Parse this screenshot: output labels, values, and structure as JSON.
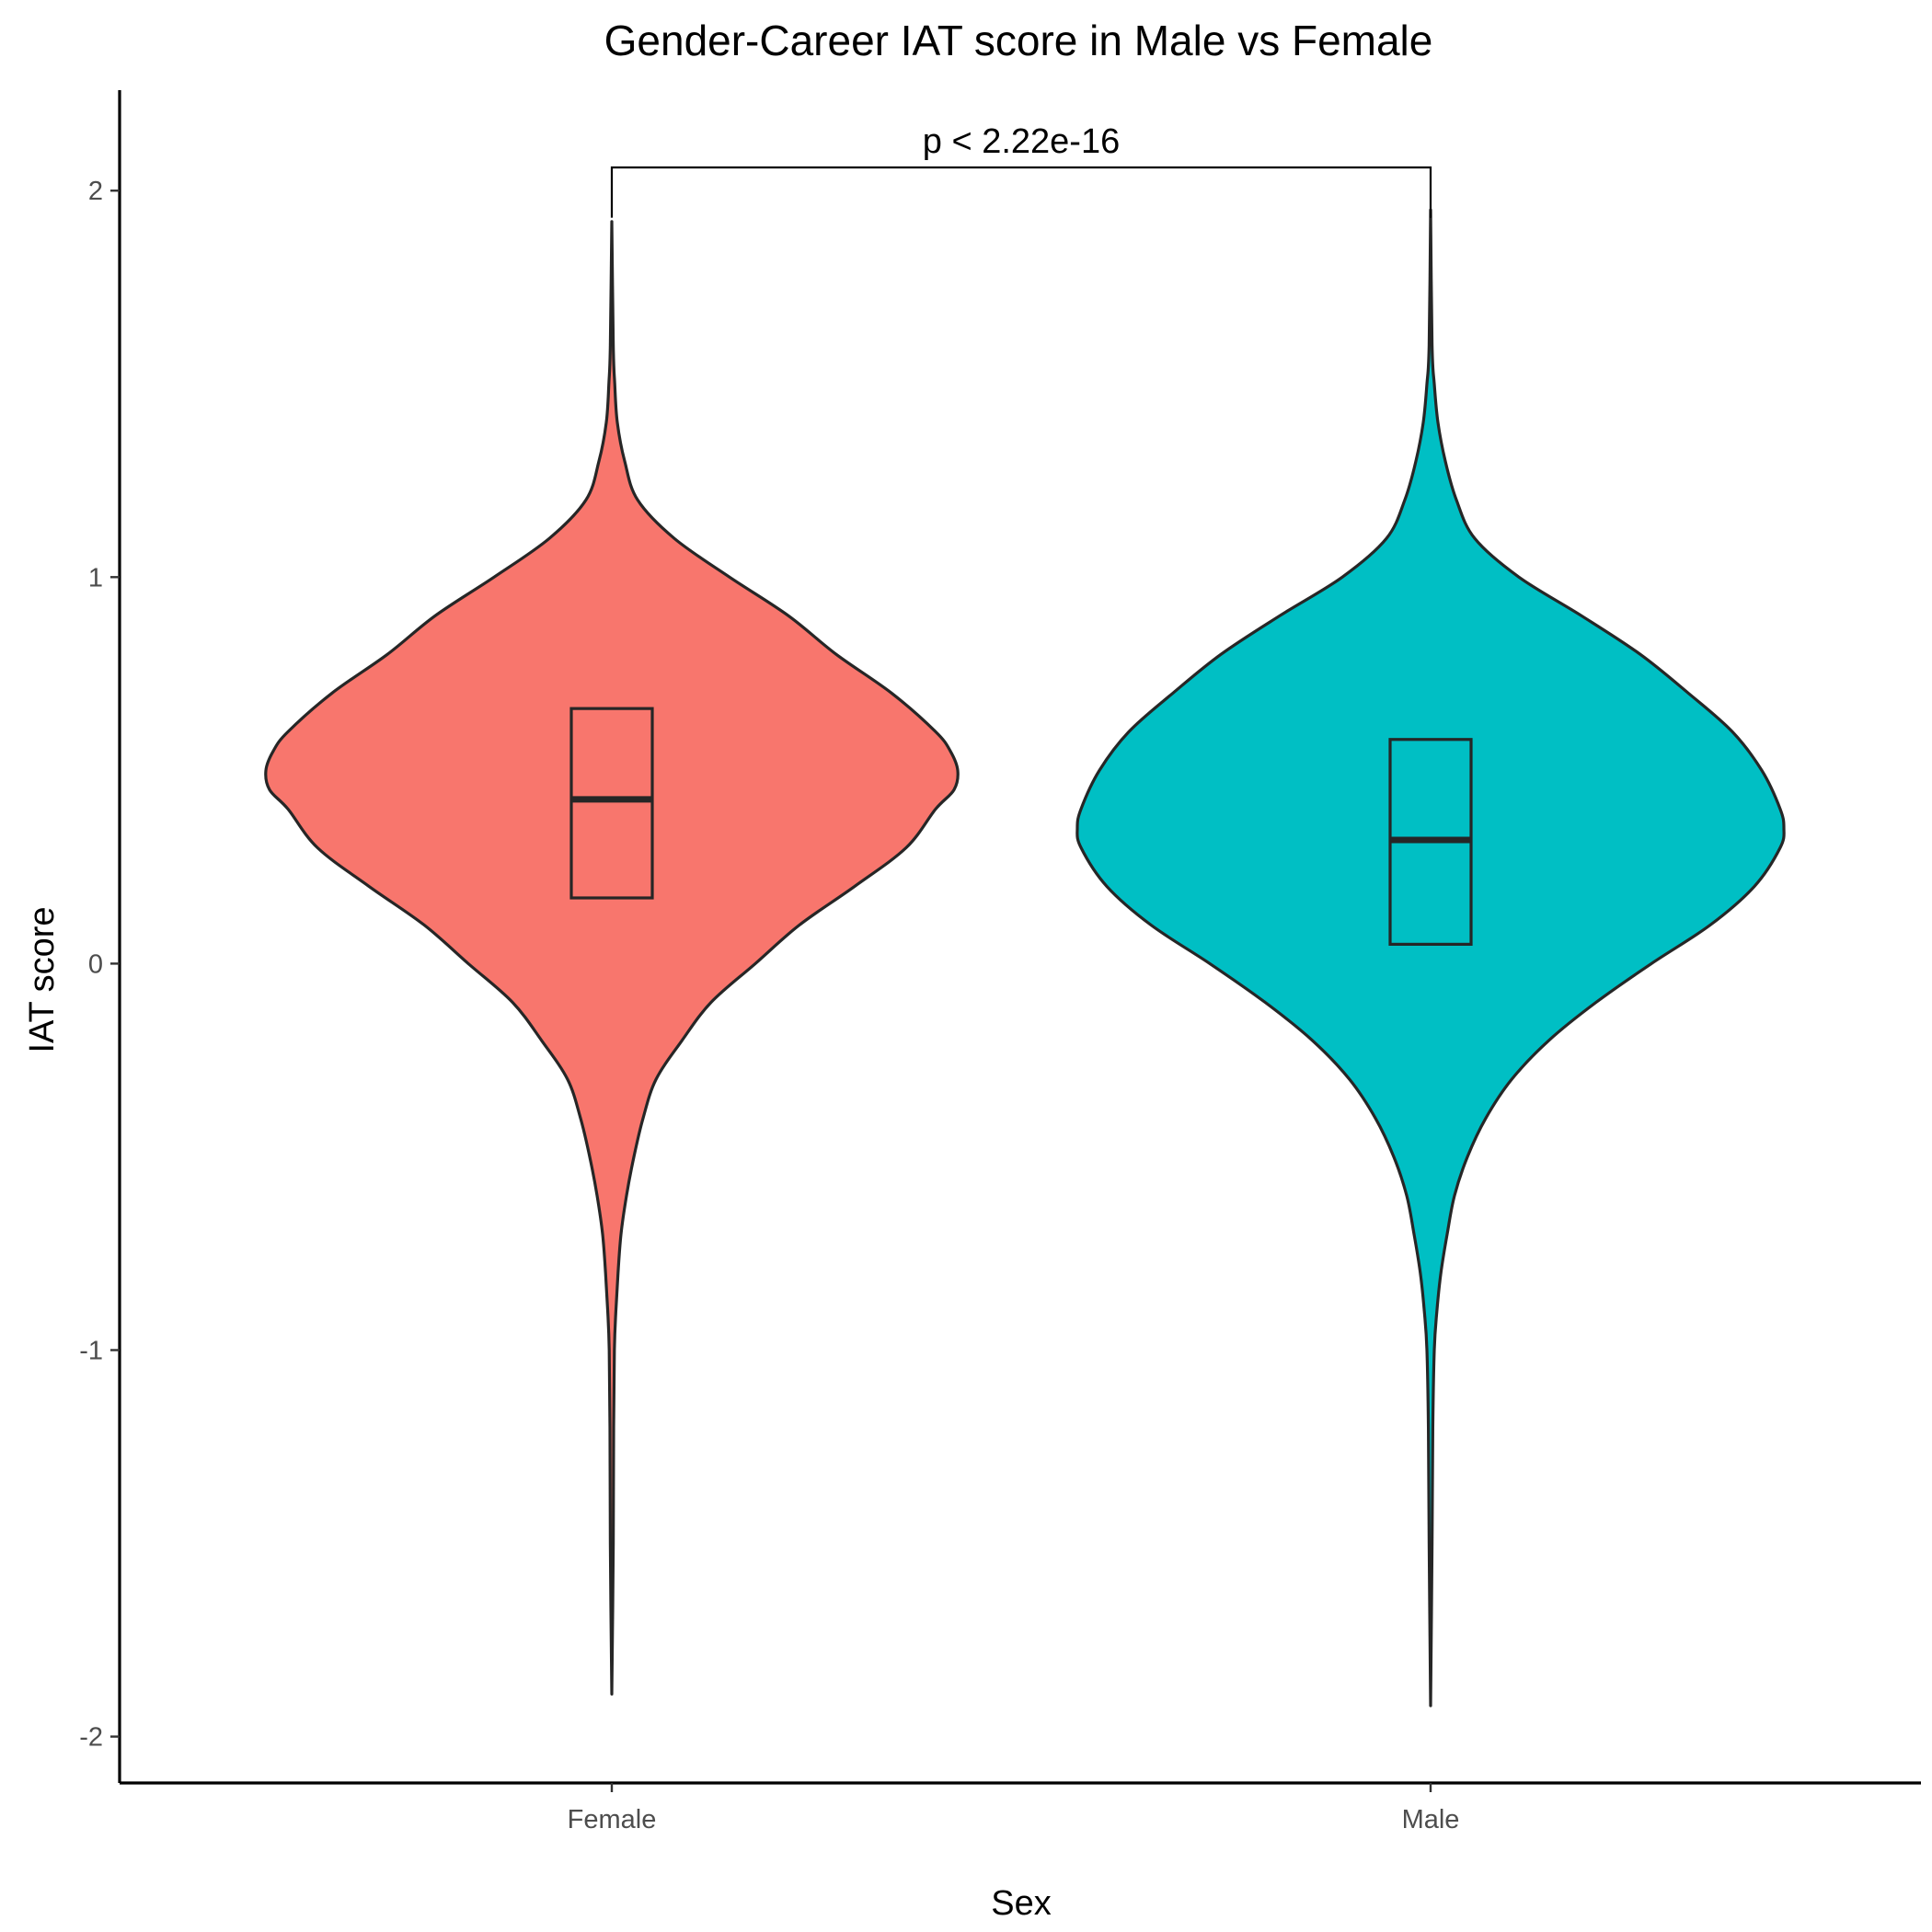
{
  "chart_data": {
    "type": "violin",
    "title": "Gender-Career IAT score in Male vs Female",
    "xlabel": "Sex",
    "ylabel": "IAT score",
    "categories": [
      "Female",
      "Male"
    ],
    "ylim": [
      -2.12,
      2.26
    ],
    "yticks": [
      -2,
      -1,
      0,
      1,
      2
    ],
    "grid": false,
    "legend": "none",
    "colors": {
      "Female": "#F8766D",
      "Male": "#00BFC4"
    },
    "series": [
      {
        "category": "Female",
        "min": -1.89,
        "max": 1.92,
        "box": {
          "q1": 0.17,
          "median": 0.425,
          "q3": 0.66
        },
        "density_profile": [
          [
            1.92,
            0.0
          ],
          [
            1.6,
            0.004
          ],
          [
            1.5,
            0.008
          ],
          [
            1.4,
            0.015
          ],
          [
            1.3,
            0.035
          ],
          [
            1.2,
            0.07
          ],
          [
            1.1,
            0.17
          ],
          [
            1.0,
            0.32
          ],
          [
            0.9,
            0.48
          ],
          [
            0.8,
            0.61
          ],
          [
            0.7,
            0.76
          ],
          [
            0.6,
            0.88
          ],
          [
            0.55,
            0.92
          ],
          [
            0.5,
            0.94
          ],
          [
            0.45,
            0.93
          ],
          [
            0.4,
            0.88
          ],
          [
            0.3,
            0.8
          ],
          [
            0.2,
            0.66
          ],
          [
            0.1,
            0.51
          ],
          [
            0.0,
            0.39
          ],
          [
            -0.1,
            0.27
          ],
          [
            -0.2,
            0.19
          ],
          [
            -0.3,
            0.12
          ],
          [
            -0.4,
            0.085
          ],
          [
            -0.5,
            0.06
          ],
          [
            -0.6,
            0.04
          ],
          [
            -0.7,
            0.025
          ],
          [
            -0.8,
            0.017
          ],
          [
            -0.9,
            0.011
          ],
          [
            -1.0,
            0.007
          ],
          [
            -1.2,
            0.005
          ],
          [
            -1.5,
            0.004
          ],
          [
            -1.89,
            0.0
          ]
        ]
      },
      {
        "category": "Male",
        "min": -1.92,
        "max": 1.95,
        "box": {
          "q1": 0.05,
          "median": 0.32,
          "q3": 0.58
        },
        "density_profile": [
          [
            1.95,
            0.0
          ],
          [
            1.6,
            0.004
          ],
          [
            1.5,
            0.01
          ],
          [
            1.4,
            0.02
          ],
          [
            1.3,
            0.04
          ],
          [
            1.2,
            0.07
          ],
          [
            1.1,
            0.12
          ],
          [
            1.0,
            0.24
          ],
          [
            0.9,
            0.41
          ],
          [
            0.8,
            0.57
          ],
          [
            0.7,
            0.7
          ],
          [
            0.6,
            0.82
          ],
          [
            0.5,
            0.9
          ],
          [
            0.4,
            0.95
          ],
          [
            0.35,
            0.96
          ],
          [
            0.3,
            0.95
          ],
          [
            0.2,
            0.88
          ],
          [
            0.1,
            0.76
          ],
          [
            0.0,
            0.6
          ],
          [
            -0.1,
            0.45
          ],
          [
            -0.2,
            0.32
          ],
          [
            -0.3,
            0.22
          ],
          [
            -0.4,
            0.15
          ],
          [
            -0.5,
            0.1
          ],
          [
            -0.6,
            0.065
          ],
          [
            -0.7,
            0.045
          ],
          [
            -0.8,
            0.028
          ],
          [
            -0.9,
            0.017
          ],
          [
            -1.0,
            0.01
          ],
          [
            -1.2,
            0.006
          ],
          [
            -1.5,
            0.004
          ],
          [
            -1.92,
            0.0
          ]
        ]
      }
    ],
    "annotations": [
      {
        "type": "comparison-bracket",
        "groups": [
          "Female",
          "Male"
        ],
        "label": "p < 2.22e-16",
        "y": 2.06
      }
    ]
  }
}
